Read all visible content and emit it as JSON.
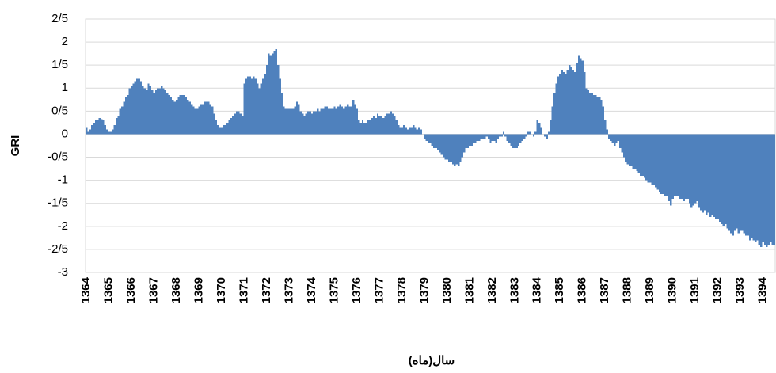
{
  "chart_data": {
    "type": "bar",
    "y_label": "GRI",
    "x_label": "سال(ماه)",
    "color": "#4f81bd",
    "grid": true,
    "ylim": [
      -3,
      2.5
    ],
    "yticks": [
      {
        "value": 2.5,
        "label": "2/5"
      },
      2,
      {
        "value": 1.5,
        "label": "1/5"
      },
      1,
      {
        "value": 0.5,
        "label": "0/5"
      },
      0,
      {
        "value": -0.5,
        "label": "-0/5"
      },
      -1,
      {
        "value": -1.5,
        "label": "-1/5"
      },
      -2,
      {
        "value": -2.5,
        "label": "-2/5"
      },
      -3
    ],
    "categories": [
      "1364",
      null,
      null,
      null,
      null,
      null,
      null,
      null,
      null,
      null,
      null,
      null,
      "1365",
      null,
      null,
      null,
      null,
      null,
      null,
      null,
      null,
      null,
      null,
      null,
      "1366",
      null,
      null,
      null,
      null,
      null,
      null,
      null,
      null,
      null,
      null,
      null,
      "1367",
      null,
      null,
      null,
      null,
      null,
      null,
      null,
      null,
      null,
      null,
      null,
      "1368",
      null,
      null,
      null,
      null,
      null,
      null,
      null,
      null,
      null,
      null,
      null,
      "1369",
      null,
      null,
      null,
      null,
      null,
      null,
      null,
      null,
      null,
      null,
      null,
      "1370",
      null,
      null,
      null,
      null,
      null,
      null,
      null,
      null,
      null,
      null,
      null,
      "1371",
      null,
      null,
      null,
      null,
      null,
      null,
      null,
      null,
      null,
      null,
      null,
      "1372",
      null,
      null,
      null,
      null,
      null,
      null,
      null,
      null,
      null,
      null,
      null,
      "1373",
      null,
      null,
      null,
      null,
      null,
      null,
      null,
      null,
      null,
      null,
      null,
      "1374",
      null,
      null,
      null,
      null,
      null,
      null,
      null,
      null,
      null,
      null,
      null,
      "1375",
      null,
      null,
      null,
      null,
      null,
      null,
      null,
      null,
      null,
      null,
      null,
      "1376",
      null,
      null,
      null,
      null,
      null,
      null,
      null,
      null,
      null,
      null,
      null,
      "1377",
      null,
      null,
      null,
      null,
      null,
      null,
      null,
      null,
      null,
      null,
      null,
      "1378",
      null,
      null,
      null,
      null,
      null,
      null,
      null,
      null,
      null,
      null,
      null,
      "1379",
      null,
      null,
      null,
      null,
      null,
      null,
      null,
      null,
      null,
      null,
      null,
      "1380",
      null,
      null,
      null,
      null,
      null,
      null,
      null,
      null,
      null,
      null,
      null,
      "1381",
      null,
      null,
      null,
      null,
      null,
      null,
      null,
      null,
      null,
      null,
      null,
      "1382",
      null,
      null,
      null,
      null,
      null,
      null,
      null,
      null,
      null,
      null,
      null,
      "1383",
      null,
      null,
      null,
      null,
      null,
      null,
      null,
      null,
      null,
      null,
      null,
      "1384",
      null,
      null,
      null,
      null,
      null,
      null,
      null,
      null,
      null,
      null,
      null,
      "1385",
      null,
      null,
      null,
      null,
      null,
      null,
      null,
      null,
      null,
      null,
      null,
      "1386",
      null,
      null,
      null,
      null,
      null,
      null,
      null,
      null,
      null,
      null,
      null,
      "1387",
      null,
      null,
      null,
      null,
      null,
      null,
      null,
      null,
      null,
      null,
      null,
      "1388",
      null,
      null,
      null,
      null,
      null,
      null,
      null,
      null,
      null,
      null,
      null,
      "1389",
      null,
      null,
      null,
      null,
      null,
      null,
      null,
      null,
      null,
      null,
      null,
      "1390",
      null,
      null,
      null,
      null,
      null,
      null,
      null,
      null,
      null,
      null,
      null,
      "1391",
      null,
      null,
      null,
      null,
      null,
      null,
      null,
      null,
      null,
      null,
      null,
      "1392",
      null,
      null,
      null,
      null,
      null,
      null,
      null,
      null,
      null,
      null,
      null,
      "1393",
      null,
      null,
      null,
      null,
      null,
      null,
      null,
      null,
      null,
      null,
      null,
      "1394",
      null,
      null,
      null,
      null,
      null,
      null
    ],
    "values": [
      0.15,
      0.05,
      0.1,
      0.2,
      0.25,
      0.3,
      0.32,
      0.35,
      0.33,
      0.3,
      0.2,
      0.1,
      0.05,
      0.05,
      0.1,
      0.2,
      0.35,
      0.4,
      0.55,
      0.6,
      0.7,
      0.8,
      0.85,
      1.0,
      1.05,
      1.1,
      1.15,
      1.2,
      1.2,
      1.15,
      1.05,
      1.0,
      0.95,
      1.1,
      1.05,
      0.95,
      0.9,
      0.95,
      1.0,
      1.0,
      1.05,
      1.0,
      0.95,
      0.9,
      0.85,
      0.8,
      0.75,
      0.7,
      0.75,
      0.8,
      0.85,
      0.85,
      0.85,
      0.8,
      0.75,
      0.7,
      0.65,
      0.6,
      0.55,
      0.55,
      0.6,
      0.65,
      0.65,
      0.7,
      0.7,
      0.7,
      0.65,
      0.6,
      0.45,
      0.3,
      0.2,
      0.15,
      0.15,
      0.2,
      0.2,
      0.25,
      0.3,
      0.35,
      0.4,
      0.45,
      0.5,
      0.5,
      0.45,
      0.4,
      1.1,
      1.2,
      1.25,
      1.25,
      1.2,
      1.25,
      1.2,
      1.1,
      1.0,
      1.1,
      1.2,
      1.3,
      1.5,
      1.75,
      1.7,
      1.75,
      1.8,
      1.85,
      1.5,
      1.2,
      0.9,
      0.6,
      0.55,
      0.55,
      0.55,
      0.55,
      0.55,
      0.6,
      0.7,
      0.65,
      0.5,
      0.45,
      0.4,
      0.45,
      0.5,
      0.5,
      0.45,
      0.5,
      0.5,
      0.55,
      0.5,
      0.55,
      0.55,
      0.6,
      0.6,
      0.55,
      0.55,
      0.55,
      0.6,
      0.55,
      0.6,
      0.65,
      0.6,
      0.55,
      0.6,
      0.65,
      0.6,
      0.6,
      0.75,
      0.65,
      0.55,
      0.3,
      0.25,
      0.3,
      0.25,
      0.25,
      0.3,
      0.3,
      0.35,
      0.4,
      0.35,
      0.45,
      0.4,
      0.4,
      0.35,
      0.4,
      0.45,
      0.45,
      0.5,
      0.45,
      0.4,
      0.3,
      0.2,
      0.15,
      0.15,
      0.2,
      0.15,
      0.1,
      0.15,
      0.15,
      0.2,
      0.15,
      0.1,
      0.15,
      0.1,
      0.0,
      -0.1,
      -0.15,
      -0.2,
      -0.2,
      -0.25,
      -0.3,
      -0.3,
      -0.35,
      -0.4,
      -0.45,
      -0.5,
      -0.55,
      -0.55,
      -0.6,
      -0.6,
      -0.65,
      -0.7,
      -0.65,
      -0.7,
      -0.6,
      -0.5,
      -0.4,
      -0.3,
      -0.3,
      -0.25,
      -0.25,
      -0.2,
      -0.2,
      -0.15,
      -0.15,
      -0.1,
      -0.1,
      -0.1,
      -0.05,
      -0.1,
      -0.2,
      -0.15,
      -0.15,
      -0.2,
      -0.1,
      -0.05,
      -0.05,
      0.05,
      -0.05,
      -0.15,
      -0.2,
      -0.25,
      -0.3,
      -0.3,
      -0.3,
      -0.25,
      -0.2,
      -0.15,
      -0.1,
      -0.05,
      0.05,
      0.05,
      0.0,
      -0.05,
      0.05,
      0.3,
      0.25,
      0.15,
      0.0,
      -0.05,
      -0.1,
      0.05,
      0.3,
      0.6,
      0.9,
      1.1,
      1.25,
      1.3,
      1.4,
      1.35,
      1.3,
      1.4,
      1.5,
      1.45,
      1.4,
      1.35,
      1.55,
      1.7,
      1.65,
      1.6,
      1.35,
      1.0,
      0.95,
      0.9,
      0.9,
      0.85,
      0.85,
      0.8,
      0.8,
      0.75,
      0.6,
      0.3,
      0.1,
      -0.1,
      -0.15,
      -0.2,
      -0.25,
      -0.2,
      -0.15,
      -0.3,
      -0.4,
      -0.5,
      -0.6,
      -0.65,
      -0.7,
      -0.7,
      -0.75,
      -0.75,
      -0.8,
      -0.85,
      -0.9,
      -0.9,
      -0.95,
      -1.0,
      -1.05,
      -1.05,
      -1.1,
      -1.1,
      -1.15,
      -1.2,
      -1.25,
      -1.3,
      -1.3,
      -1.35,
      -1.35,
      -1.45,
      -1.55,
      -1.4,
      -1.35,
      -1.35,
      -1.35,
      -1.4,
      -1.4,
      -1.45,
      -1.4,
      -1.4,
      -1.5,
      -1.6,
      -1.55,
      -1.5,
      -1.45,
      -1.6,
      -1.65,
      -1.7,
      -1.65,
      -1.75,
      -1.7,
      -1.8,
      -1.75,
      -1.8,
      -1.85,
      -1.85,
      -1.9,
      -1.95,
      -2.0,
      -1.95,
      -2.05,
      -2.1,
      -2.15,
      -2.2,
      -2.1,
      -2.05,
      -2.15,
      -2.1,
      -2.1,
      -2.15,
      -2.2,
      -2.2,
      -2.3,
      -2.25,
      -2.3,
      -2.35,
      -2.3,
      -2.4,
      -2.45,
      -2.35,
      -2.4,
      -2.45,
      -2.4,
      -2.35,
      -2.4,
      -2.4
    ]
  }
}
